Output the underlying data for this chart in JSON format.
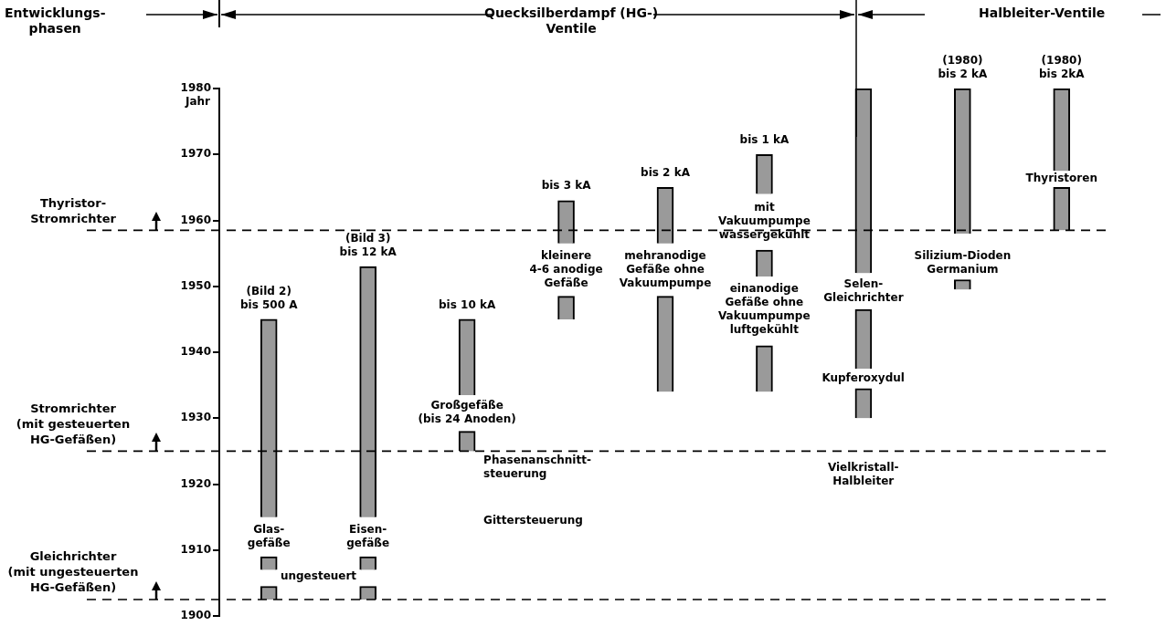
{
  "chart_data": {
    "type": "bar",
    "categories": [
      "Glas-\ngefäße",
      "Eisen-\ngefäße",
      "Großgefäße\n(bis 24 Anoden)",
      "kleinere\n4-6 anodige\nGefäße",
      "mehranodige\nGefäße ohne\nVakuumpumpe",
      "mit\nVakuumpumpe\nwassergekühlt",
      "Selen-\nGleichrichter",
      "Silizium-Dioden",
      "Thyristoren"
    ],
    "series": [
      {
        "color": "#9a9a9a",
        "base": [
          1915,
          1915,
          1933.5,
          1956.5,
          1956.5,
          1964,
          1952,
          1958,
          1967.5
        ],
        "values": [
          30,
          38,
          11.5,
          6.5,
          8.5,
          6,
          28,
          22,
          12.5
        ],
        "value_labels": [
          "(Bild 2)\nbis 500 A",
          "(Bild 3)\nbis 12 kA",
          "bis 10 kA",
          "bis 3 kA",
          "bis 2 kA",
          "bis 1 kA",
          null,
          "(1980)\nbis 2 kA",
          "(1980)\nbis 2kA"
        ]
      },
      {
        "color": "#9a9a9a",
        "base": [
          1907,
          1907,
          1925,
          1945,
          1934,
          1951.5,
          1937.5,
          1949.5,
          1958.5
        ],
        "values": [
          2,
          2,
          3,
          3.5,
          14.5,
          4,
          9,
          1.5,
          6.5
        ]
      },
      {
        "color": "#9a9a9a",
        "base": [
          1902.5,
          1902.5,
          null,
          null,
          null,
          1934,
          1930,
          null,
          null
        ],
        "values": [
          2,
          2,
          null,
          null,
          null,
          7,
          4.5,
          null,
          null
        ]
      }
    ],
    "ylabel": "Jahr",
    "ylim": [
      1900,
      1980
    ],
    "yticks": [
      1900,
      1910,
      1920,
      1930,
      1940,
      1950,
      1960,
      1970,
      1980
    ],
    "tick_labels": "y",
    "grid": false,
    "legend": false,
    "ref_lines": [
      {
        "axis": "y",
        "value": 1958.5,
        "label": "Thyristor-\nStromrichter",
        "color": "#000000",
        "line_style": "dashed"
      },
      {
        "axis": "y",
        "value": 1925,
        "label": "Stromrichter\n(mit gesteuerten\nHG-Gefäßen)",
        "color": "#000000",
        "line_style": "dashed"
      },
      {
        "axis": "y",
        "value": 1902.5,
        "label": "Gleichrichter\n(mit ungesteuerten\nHG-Gefäßen)",
        "color": "#000000",
        "line_style": "dashed"
      }
    ],
    "annotations": [
      "Entwicklungs-\nphasen",
      "Quecksilberdampf (HG-)\nVentile",
      "Halbleiter-Ventile",
      "ungesteuert",
      "Phasenanschnitt-\nsteuerung",
      "Gittersteuerung",
      "einanodige\nGefäße ohne\nVakuumpumpe\nluftgekühlt",
      "Vielkristall-\nHalbleiter",
      "Kupferoxydul",
      "Germanium"
    ]
  }
}
